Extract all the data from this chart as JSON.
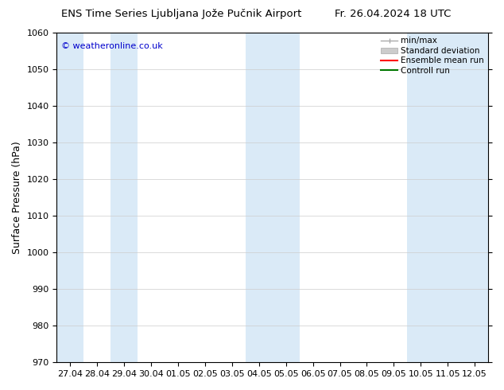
{
  "title_left": "ENS Time Series Ljubljana Jože Pučnik Airport",
  "title_right": "Fr. 26.04.2024 18 UTC",
  "ylabel": "Surface Pressure (hPa)",
  "ylim": [
    970,
    1060
  ],
  "yticks": [
    970,
    980,
    990,
    1000,
    1010,
    1020,
    1030,
    1040,
    1050,
    1060
  ],
  "xtick_labels": [
    "27.04",
    "28.04",
    "29.04",
    "30.04",
    "01.05",
    "02.05",
    "03.05",
    "04.05",
    "05.05",
    "06.05",
    "07.05",
    "08.05",
    "09.05",
    "10.05",
    "11.05",
    "12.05"
  ],
  "watermark": "© weatheronline.co.uk",
  "watermark_color": "#0000cc",
  "bg_color": "#ffffff",
  "band_color": "#daeaf7",
  "shaded_indices": [
    0,
    2,
    7,
    8,
    13,
    14,
    15
  ],
  "legend_labels": [
    "min/max",
    "Standard deviation",
    "Ensemble mean run",
    "Controll run"
  ],
  "minmax_color": "#aaaaaa",
  "std_color": "#cccccc",
  "ensemble_color": "#ff0000",
  "control_color": "#007700",
  "title_fontsize": 9.5,
  "ylabel_fontsize": 9,
  "tick_fontsize": 8,
  "watermark_fontsize": 8,
  "legend_fontsize": 7.5
}
